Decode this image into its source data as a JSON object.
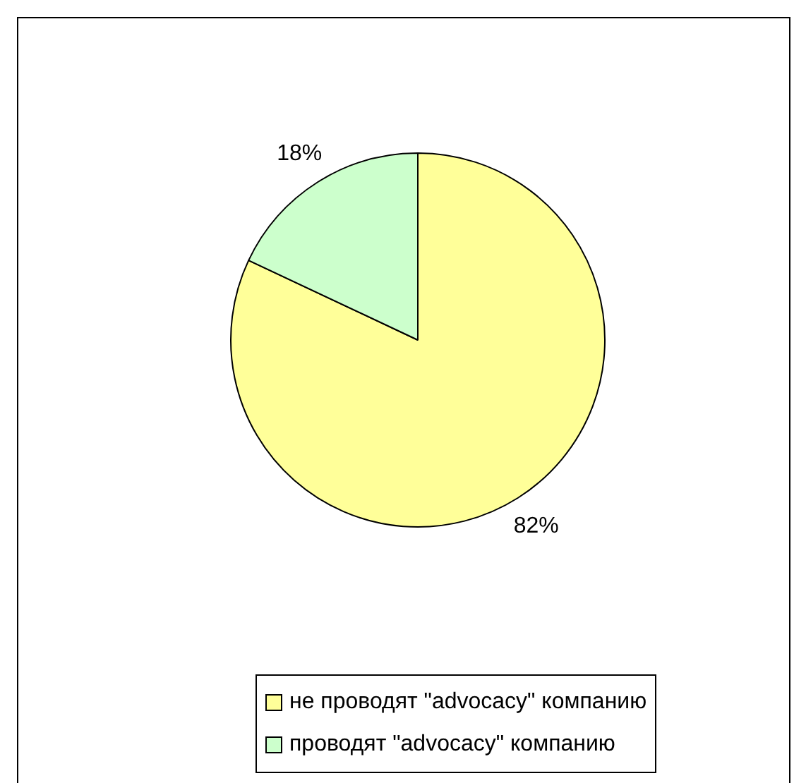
{
  "chart_data": {
    "type": "pie",
    "categories": [
      "не проводят \"advocacy\" компанию",
      "проводят \"advocacy\" компанию"
    ],
    "values": [
      82,
      18
    ],
    "colors": [
      "#ffff99",
      "#ccffcc"
    ],
    "value_labels": [
      "82%",
      "18%"
    ],
    "legend": "bottom"
  }
}
